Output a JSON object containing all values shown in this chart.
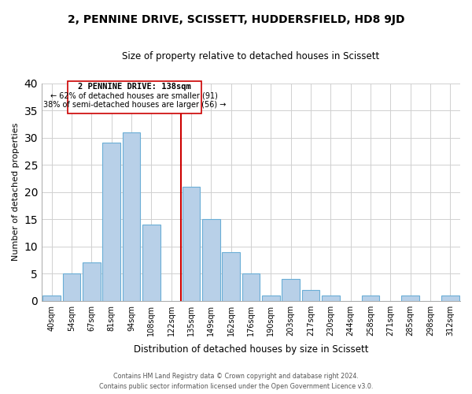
{
  "title": "2, PENNINE DRIVE, SCISSETT, HUDDERSFIELD, HD8 9JD",
  "subtitle": "Size of property relative to detached houses in Scissett",
  "xlabel": "Distribution of detached houses by size in Scissett",
  "ylabel": "Number of detached properties",
  "bar_labels": [
    "40sqm",
    "54sqm",
    "67sqm",
    "81sqm",
    "94sqm",
    "108sqm",
    "122sqm",
    "135sqm",
    "149sqm",
    "162sqm",
    "176sqm",
    "190sqm",
    "203sqm",
    "217sqm",
    "230sqm",
    "244sqm",
    "258sqm",
    "271sqm",
    "285sqm",
    "298sqm",
    "312sqm"
  ],
  "bar_values": [
    1,
    5,
    7,
    29,
    31,
    14,
    0,
    21,
    15,
    9,
    5,
    1,
    4,
    2,
    1,
    0,
    1,
    0,
    1,
    0,
    1
  ],
  "bar_color": "#b8d0e8",
  "bar_edge_color": "#6baed6",
  "vline_color": "#cc0000",
  "vline_x": 6.5,
  "annotation_title": "2 PENNINE DRIVE: 138sqm",
  "annotation_line1": "← 62% of detached houses are smaller (91)",
  "annotation_line2": "38% of semi-detached houses are larger (56) →",
  "annotation_box_color": "#ffffff",
  "annotation_box_edge": "#cc0000",
  "ylim": [
    0,
    40
  ],
  "yticks": [
    0,
    5,
    10,
    15,
    20,
    25,
    30,
    35,
    40
  ],
  "footer_line1": "Contains HM Land Registry data © Crown copyright and database right 2024.",
  "footer_line2": "Contains public sector information licensed under the Open Government Licence v3.0.",
  "background_color": "#ffffff",
  "grid_color": "#d0d0d0"
}
